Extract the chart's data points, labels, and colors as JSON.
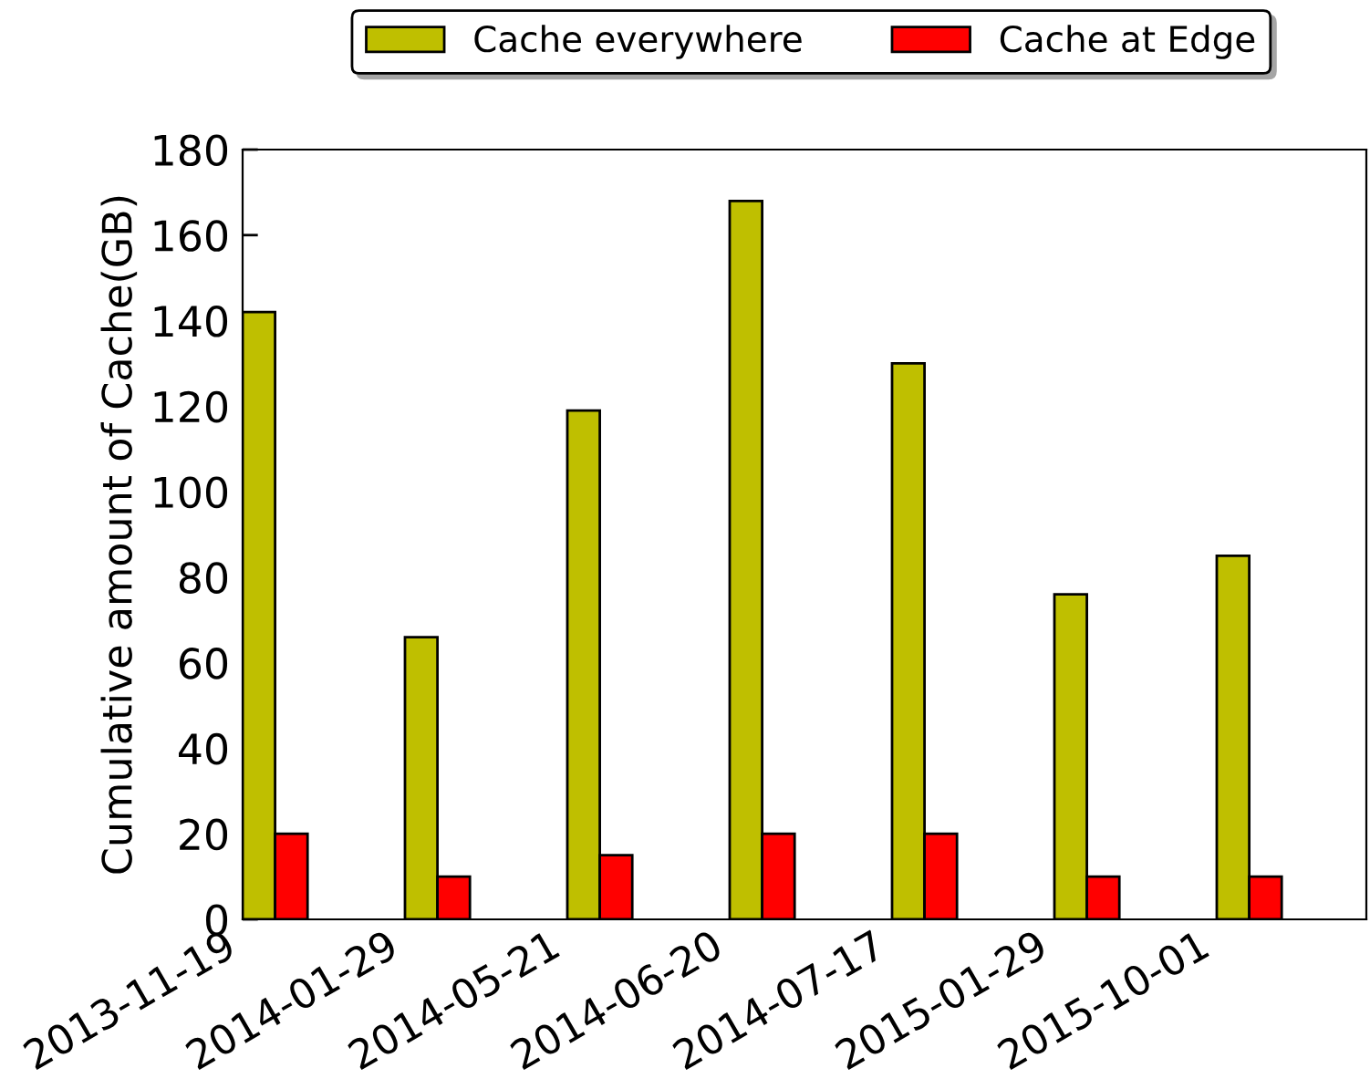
{
  "chart_data": {
    "type": "bar",
    "ylabel": "Cumulative amount of Cache(GB)",
    "categories": [
      "2013-11-19",
      "2014-01-29",
      "2014-05-21",
      "2014-06-20",
      "2014-07-17",
      "2015-01-29",
      "2015-10-01"
    ],
    "series": [
      {
        "name": "Cache everywhere",
        "color": "#bfbf00",
        "values": [
          142,
          66,
          119,
          168,
          130,
          76,
          85
        ]
      },
      {
        "name": "Cache at Edge",
        "color": "#ff0000",
        "values": [
          20,
          10,
          15,
          20,
          20,
          10,
          10
        ]
      }
    ],
    "ylim": [
      0,
      180
    ],
    "yticks": [
      0,
      20,
      40,
      60,
      80,
      100,
      120,
      140,
      160,
      180
    ],
    "legend": "top"
  }
}
